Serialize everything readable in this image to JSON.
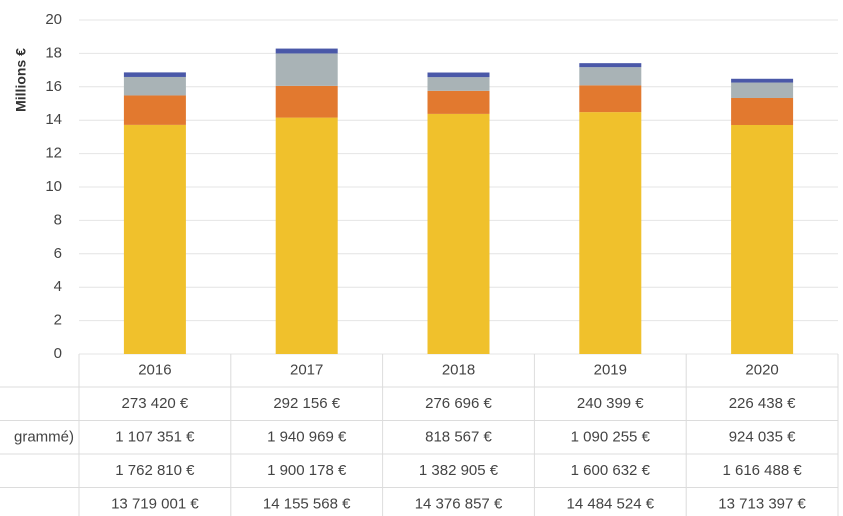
{
  "chart_data": {
    "type": "stacked_bar",
    "ylabel": "Millions €",
    "categories": [
      "2016",
      "2017",
      "2018",
      "2019",
      "2020"
    ],
    "series": [
      {
        "color": "#4a58a8",
        "values": [
          0.27342,
          0.292156,
          0.276696,
          0.240399,
          0.226438
        ],
        "value_labels": [
          "273 420 €",
          "292 156 €",
          "276 696 €",
          "240 399 €",
          "226 438 €"
        ]
      },
      {
        "name": "grammé)",
        "color": "#a9b3b6",
        "values": [
          1.107351,
          1.940969,
          0.818567,
          1.090255,
          0.924035
        ],
        "value_labels": [
          "1 107 351 €",
          "1 940 969 €",
          "818 567 €",
          "1 090 255 €",
          "924 035 €"
        ]
      },
      {
        "color": "#e2792f",
        "values": [
          1.76281,
          1.900178,
          1.382905,
          1.600632,
          1.616488
        ],
        "value_labels": [
          "1 762 810 €",
          "1 900 178 €",
          "1 382 905 €",
          "1 600 632 €",
          "1 616 488 €"
        ]
      },
      {
        "color": "#f0c12c",
        "values": [
          13.719001,
          14.155568,
          14.376857,
          14.484524,
          13.713397
        ],
        "value_labels": [
          "13 719 001 €",
          "14 155 568 €",
          "14 376 857 €",
          "14 484 524 €",
          "13 713 397 €"
        ]
      }
    ],
    "ylim": [
      0,
      20
    ],
    "yticks": [
      0,
      2,
      4,
      6,
      8,
      10,
      12,
      14,
      16,
      18,
      20
    ],
    "grid": true
  }
}
